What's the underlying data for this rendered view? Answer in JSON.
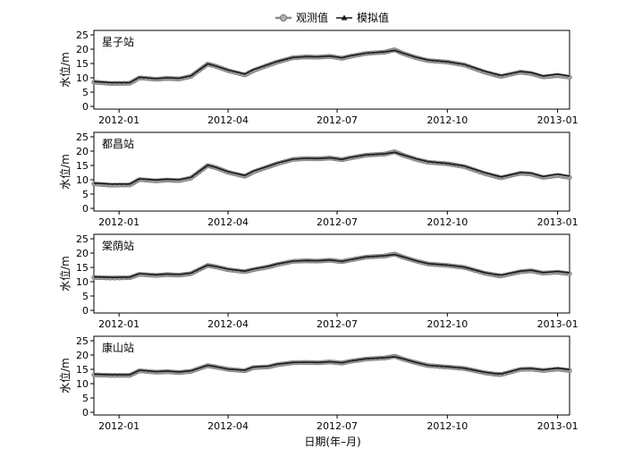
{
  "legend": {
    "observed": "观测值",
    "simulated": "模拟值"
  },
  "xlabel": "日期(年–月)",
  "colors": {
    "observed": "#8c8c8c",
    "simulated": "#1a1a1a",
    "axis": "#000000"
  },
  "chart_data": [
    {
      "type": "line",
      "station": "星子站",
      "ylabel": "水位/m",
      "ylim": [
        0,
        25
      ],
      "yticks": [
        0,
        5,
        10,
        15,
        20,
        25
      ],
      "xlim": [
        "2011-12-11",
        "2013-01-11"
      ],
      "xticks": [
        "2012-01",
        "2012-04",
        "2012-07",
        "2012-10",
        "2013-01"
      ],
      "x": [
        "2011-12-11",
        "2011-12-25",
        "2012-01-10",
        "2012-01-18",
        "2012-02-01",
        "2012-02-10",
        "2012-02-20",
        "2012-03-01",
        "2012-03-15",
        "2012-03-22",
        "2012-04-01",
        "2012-04-15",
        "2012-04-22",
        "2012-05-05",
        "2012-05-12",
        "2012-05-25",
        "2012-06-05",
        "2012-06-15",
        "2012-06-25",
        "2012-07-05",
        "2012-07-12",
        "2012-07-25",
        "2012-08-10",
        "2012-08-18",
        "2012-08-25",
        "2012-09-05",
        "2012-09-15",
        "2012-10-01",
        "2012-10-15",
        "2012-11-01",
        "2012-11-10",
        "2012-11-15",
        "2012-12-01",
        "2012-12-10",
        "2012-12-20",
        "2013-01-01",
        "2013-01-11"
      ],
      "series": [
        {
          "name": "观测值",
          "values": [
            8.5,
            8.0,
            8.1,
            10.0,
            9.5,
            9.8,
            9.6,
            10.5,
            14.8,
            14.0,
            12.5,
            11.0,
            12.5,
            14.5,
            15.5,
            17.0,
            17.3,
            17.2,
            17.5,
            16.8,
            17.5,
            18.5,
            19.0,
            19.8,
            18.5,
            17.0,
            16.0,
            15.5,
            14.5,
            12.0,
            11.0,
            10.5,
            12.0,
            11.5,
            10.3,
            10.8,
            10.2
          ]
        },
        {
          "name": "模拟值",
          "values": [
            8.7,
            8.3,
            8.3,
            10.2,
            9.7,
            10.0,
            9.8,
            10.7,
            14.9,
            14.1,
            12.7,
            11.3,
            12.8,
            14.7,
            15.7,
            17.1,
            17.4,
            17.3,
            17.6,
            17.0,
            17.7,
            18.6,
            19.1,
            19.6,
            18.6,
            17.2,
            16.2,
            15.6,
            14.7,
            12.3,
            11.3,
            10.8,
            12.2,
            11.8,
            10.6,
            11.3,
            10.6
          ]
        }
      ]
    },
    {
      "type": "line",
      "station": "都昌站",
      "ylabel": "水位/m",
      "ylim": [
        0,
        25
      ],
      "yticks": [
        0,
        5,
        10,
        15,
        20,
        25
      ],
      "xlim": [
        "2011-12-11",
        "2013-01-11"
      ],
      "xticks": [
        "2012-01",
        "2012-04",
        "2012-07",
        "2012-10",
        "2013-01"
      ],
      "x": [
        "2011-12-11",
        "2011-12-25",
        "2012-01-10",
        "2012-01-18",
        "2012-02-01",
        "2012-02-10",
        "2012-02-20",
        "2012-03-01",
        "2012-03-15",
        "2012-03-22",
        "2012-04-01",
        "2012-04-15",
        "2012-04-22",
        "2012-05-05",
        "2012-05-12",
        "2012-05-25",
        "2012-06-05",
        "2012-06-15",
        "2012-06-25",
        "2012-07-05",
        "2012-07-12",
        "2012-07-25",
        "2012-08-10",
        "2012-08-18",
        "2012-08-25",
        "2012-09-05",
        "2012-09-15",
        "2012-10-01",
        "2012-10-15",
        "2012-11-01",
        "2012-11-10",
        "2012-11-15",
        "2012-12-01",
        "2012-12-10",
        "2012-12-20",
        "2013-01-01",
        "2013-01-11"
      ],
      "series": [
        {
          "name": "观测值",
          "values": [
            8.6,
            8.1,
            8.2,
            10.1,
            9.6,
            9.9,
            9.7,
            10.6,
            15.0,
            14.2,
            12.6,
            11.2,
            12.7,
            14.6,
            15.6,
            17.1,
            17.4,
            17.3,
            17.6,
            17.0,
            17.6,
            18.6,
            19.0,
            19.8,
            18.6,
            17.1,
            16.1,
            15.6,
            14.6,
            12.2,
            11.2,
            10.7,
            12.3,
            12.0,
            10.8,
            11.5,
            10.8
          ]
        },
        {
          "name": "模拟值",
          "values": [
            8.8,
            8.5,
            8.5,
            10.3,
            9.9,
            10.2,
            10.0,
            10.8,
            15.1,
            14.3,
            12.8,
            11.5,
            13.0,
            14.8,
            15.8,
            17.2,
            17.5,
            17.4,
            17.7,
            17.1,
            17.8,
            18.7,
            19.1,
            19.6,
            18.7,
            17.3,
            16.3,
            15.7,
            14.8,
            12.5,
            11.5,
            11.0,
            12.5,
            12.3,
            11.1,
            12.0,
            11.3
          ]
        }
      ]
    },
    {
      "type": "line",
      "station": "棠荫站",
      "ylabel": "水位/m",
      "ylim": [
        0,
        25
      ],
      "yticks": [
        0,
        5,
        10,
        15,
        20,
        25
      ],
      "xlim": [
        "2011-12-11",
        "2013-01-11"
      ],
      "xticks": [
        "2012-01",
        "2012-04",
        "2012-07",
        "2012-10",
        "2013-01"
      ],
      "x": [
        "2011-12-11",
        "2011-12-25",
        "2012-01-10",
        "2012-01-18",
        "2012-02-01",
        "2012-02-10",
        "2012-02-20",
        "2012-03-01",
        "2012-03-15",
        "2012-03-22",
        "2012-04-01",
        "2012-04-15",
        "2012-04-22",
        "2012-05-05",
        "2012-05-12",
        "2012-05-25",
        "2012-06-05",
        "2012-06-15",
        "2012-06-25",
        "2012-07-05",
        "2012-07-12",
        "2012-07-25",
        "2012-08-10",
        "2012-08-18",
        "2012-08-25",
        "2012-09-05",
        "2012-09-15",
        "2012-10-01",
        "2012-10-15",
        "2012-11-01",
        "2012-11-10",
        "2012-11-15",
        "2012-12-01",
        "2012-12-10",
        "2012-12-20",
        "2013-01-01",
        "2013-01-11"
      ],
      "series": [
        {
          "name": "观测值",
          "values": [
            11.5,
            11.3,
            11.4,
            12.6,
            12.2,
            12.5,
            12.3,
            12.8,
            15.7,
            15.2,
            14.2,
            13.5,
            14.2,
            15.2,
            16.0,
            17.1,
            17.3,
            17.2,
            17.5,
            17.0,
            17.6,
            18.6,
            19.0,
            19.7,
            18.6,
            17.2,
            16.2,
            15.7,
            15.0,
            13.0,
            12.3,
            12.0,
            13.5,
            13.8,
            13.0,
            13.3,
            12.8
          ]
        },
        {
          "name": "模拟值",
          "values": [
            11.7,
            11.5,
            11.6,
            12.8,
            12.4,
            12.7,
            12.5,
            13.0,
            15.8,
            15.3,
            14.4,
            13.7,
            14.4,
            15.4,
            16.2,
            17.2,
            17.4,
            17.3,
            17.6,
            17.1,
            17.7,
            18.7,
            19.1,
            19.5,
            18.7,
            17.3,
            16.3,
            15.8,
            15.1,
            13.2,
            12.5,
            12.3,
            13.7,
            14.0,
            13.2,
            13.6,
            13.1
          ]
        }
      ]
    },
    {
      "type": "line",
      "station": "康山站",
      "ylabel": "水位/m",
      "ylim": [
        0,
        25
      ],
      "yticks": [
        0,
        5,
        10,
        15,
        20,
        25
      ],
      "xlim": [
        "2011-12-11",
        "2013-01-11"
      ],
      "xticks": [
        "2012-01",
        "2012-04",
        "2012-07",
        "2012-10",
        "2013-01"
      ],
      "x": [
        "2011-12-11",
        "2011-12-25",
        "2012-01-10",
        "2012-01-18",
        "2012-02-01",
        "2012-02-10",
        "2012-02-20",
        "2012-03-01",
        "2012-03-15",
        "2012-03-22",
        "2012-04-01",
        "2012-04-15",
        "2012-04-22",
        "2012-05-05",
        "2012-05-12",
        "2012-05-25",
        "2012-06-05",
        "2012-06-15",
        "2012-06-25",
        "2012-07-05",
        "2012-07-12",
        "2012-07-25",
        "2012-08-10",
        "2012-08-18",
        "2012-08-25",
        "2012-09-05",
        "2012-09-15",
        "2012-10-01",
        "2012-10-15",
        "2012-11-01",
        "2012-11-10",
        "2012-11-15",
        "2012-12-01",
        "2012-12-10",
        "2012-12-20",
        "2013-01-01",
        "2013-01-11"
      ],
      "series": [
        {
          "name": "观测值",
          "values": [
            13.1,
            12.9,
            12.9,
            14.5,
            14.0,
            14.2,
            13.9,
            14.3,
            16.3,
            15.8,
            15.0,
            14.5,
            15.6,
            15.9,
            16.6,
            17.3,
            17.4,
            17.3,
            17.6,
            17.2,
            17.8,
            18.6,
            19.0,
            19.6,
            18.6,
            17.3,
            16.3,
            15.8,
            15.3,
            13.8,
            13.3,
            13.2,
            15.0,
            15.1,
            14.6,
            15.1,
            14.6
          ]
        },
        {
          "name": "模拟值",
          "values": [
            13.3,
            13.1,
            13.1,
            14.7,
            14.2,
            14.4,
            14.1,
            14.5,
            16.4,
            15.9,
            15.1,
            14.7,
            15.8,
            16.1,
            16.8,
            17.4,
            17.5,
            17.4,
            17.7,
            17.3,
            17.9,
            18.7,
            19.1,
            19.4,
            18.7,
            17.4,
            16.4,
            15.9,
            15.4,
            14.0,
            13.5,
            13.4,
            15.2,
            15.3,
            14.8,
            15.4,
            14.9
          ]
        }
      ]
    }
  ]
}
